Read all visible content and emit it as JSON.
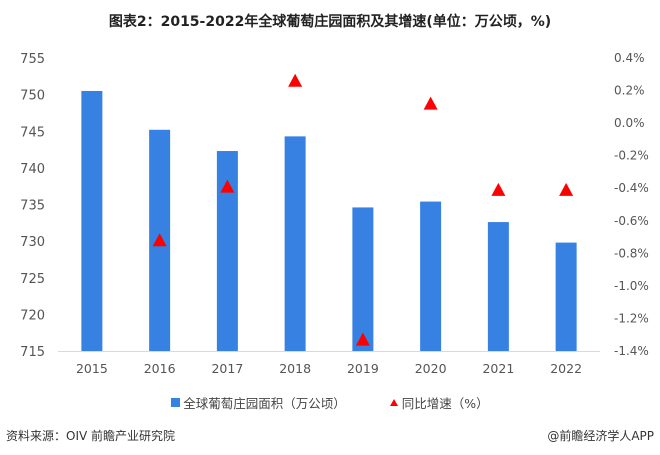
{
  "chart_data": {
    "type": "bar+scatter",
    "title": "图表2：2015-2022年全球葡萄庄园面积及其增速(单位：万公顷，%)",
    "categories": [
      "2015",
      "2016",
      "2017",
      "2018",
      "2019",
      "2020",
      "2021",
      "2022"
    ],
    "series": [
      {
        "name": "全球葡萄庄园面积（万公顷）",
        "type": "bar",
        "axis": "left",
        "color": "#3781e3",
        "values": [
          750.5,
          745.2,
          742.3,
          744.3,
          734.6,
          735.4,
          732.6,
          729.8
        ]
      },
      {
        "name": "同比增速（%）",
        "type": "triangle-marker",
        "axis": "right",
        "color": "#ff0000",
        "values": [
          null,
          -0.72,
          -0.39,
          0.26,
          -1.33,
          0.12,
          -0.41,
          -0.41
        ]
      }
    ],
    "left_axis": {
      "ylim": [
        715,
        755
      ],
      "ticks": [
        "715",
        "720",
        "725",
        "730",
        "735",
        "740",
        "745",
        "750",
        "755"
      ]
    },
    "right_axis": {
      "ylim": [
        -1.4,
        0.4
      ],
      "ticks": [
        "-1.4%",
        "-1.2%",
        "-1.0%",
        "-0.8%",
        "-0.6%",
        "-0.4%",
        "-0.2%",
        "0.0%",
        "0.2%",
        "0.4%"
      ]
    },
    "grid": false,
    "legend_position": "bottom"
  },
  "footer": {
    "source": "资料来源：OIV 前瞻产业研究院",
    "credit": "@前瞻经济学人APP"
  }
}
